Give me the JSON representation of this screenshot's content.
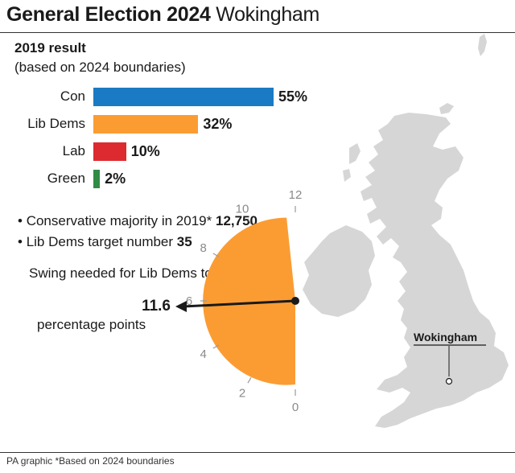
{
  "header": {
    "title_bold": "General Election 2024",
    "title_rest": "Wokingham"
  },
  "subtitle": {
    "line1": "2019 result",
    "line2": "(based on 2024 boundaries)"
  },
  "chart_data": [
    {
      "type": "bar",
      "orientation": "horizontal",
      "categories": [
        "Con",
        "Lib Dems",
        "Lab",
        "Green"
      ],
      "values": [
        55,
        32,
        10,
        2
      ],
      "value_labels": [
        "55%",
        "32%",
        "10%",
        "2%"
      ],
      "colors": [
        "#1a7ac4",
        "#fb9c33",
        "#dd2a31",
        "#2f8b45"
      ],
      "xlim": [
        0,
        55
      ],
      "grid": false
    },
    {
      "type": "gauge",
      "value": 11.6,
      "range": [
        0,
        12
      ],
      "ticks": [
        "0",
        "2",
        "4",
        "6",
        "8",
        "10",
        "12"
      ],
      "fill_color": "#fb9c33",
      "value_label": "11.6",
      "unit_label": "percentage points"
    }
  ],
  "facts": [
    {
      "bullet": "•",
      "text": "Conservative majority in 2019*",
      "value": "12,750"
    },
    {
      "bullet": "•",
      "text": "Lib Dems target number",
      "value": "35"
    }
  ],
  "swing": {
    "label": "Swing needed for Lib Dems to gain:"
  },
  "map": {
    "marker_label": "Wokingham",
    "land_color": "#d6d6d6"
  },
  "footer": {
    "text": "PA graphic *Based on 2024 boundaries"
  }
}
